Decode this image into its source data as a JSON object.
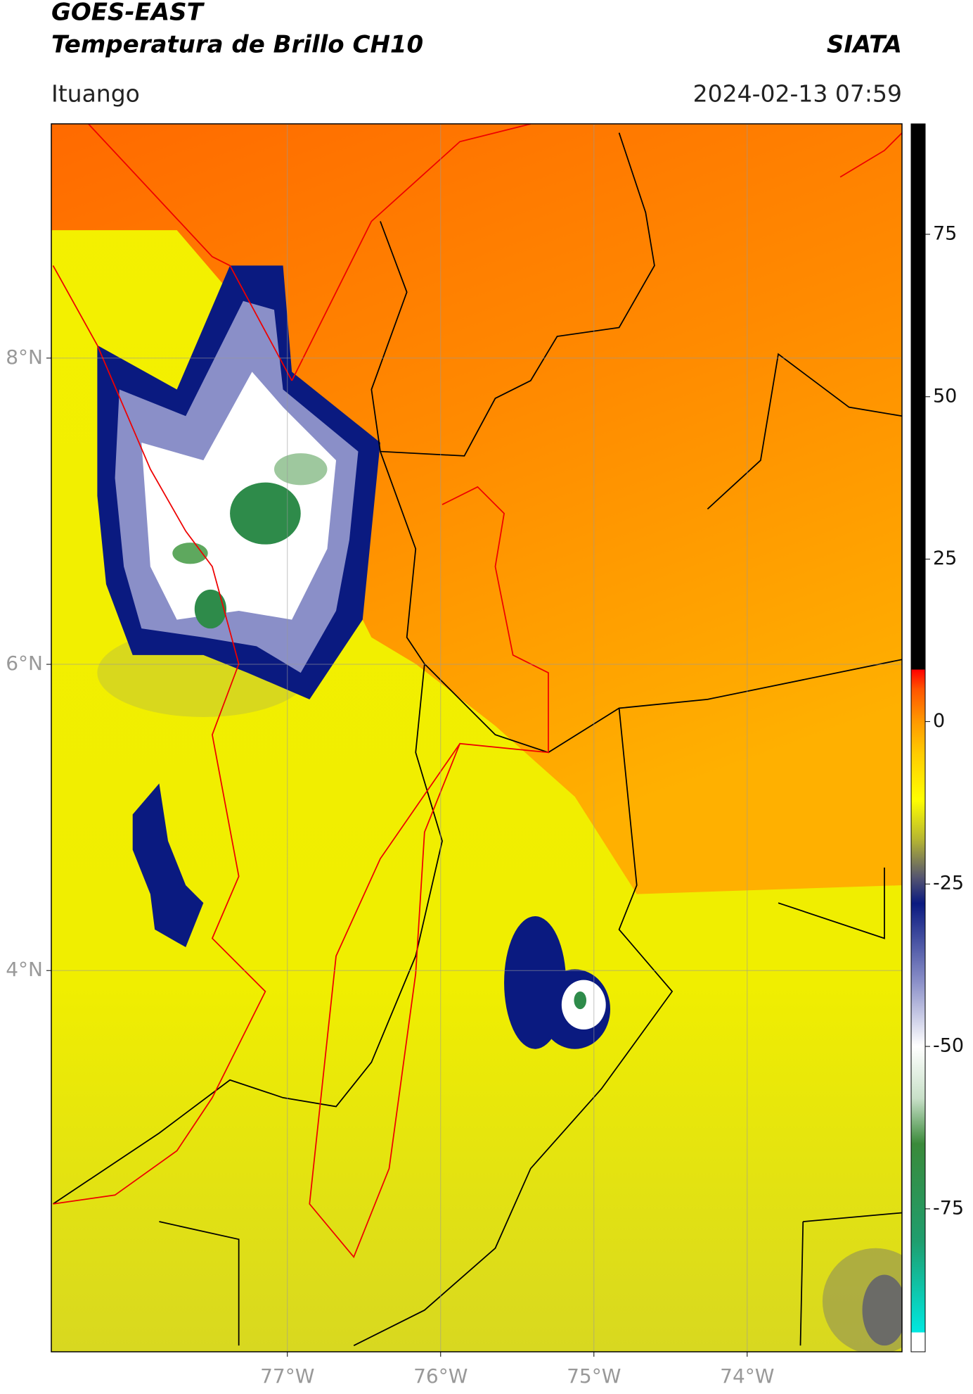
{
  "header": {
    "title": "GOES-EAST",
    "subtitle": "Temperatura de Brillo CH10",
    "org": "SIATA",
    "location": "Ituango",
    "datetime": "2024-02-13 07:59"
  },
  "map": {
    "xlim": [
      -78.54,
      -72.99
    ],
    "ylim": [
      1.51,
      9.53
    ],
    "xticks": [
      {
        "value": -77,
        "label": "77°W"
      },
      {
        "value": -76,
        "label": "76°W"
      },
      {
        "value": -75,
        "label": "75°W"
      },
      {
        "value": -74,
        "label": "74°W"
      }
    ],
    "yticks": [
      {
        "value": 8,
        "label": "8°N"
      },
      {
        "value": 6,
        "label": "6°N"
      },
      {
        "value": 4,
        "label": "4°N"
      }
    ],
    "grid": true
  },
  "colorbar": {
    "clim": [
      -97,
      92
    ],
    "ticks": [
      75,
      50,
      25,
      0,
      -25,
      -50,
      -75
    ],
    "colormap": [
      [
        -97,
        "#ffffff"
      ],
      [
        -94,
        "#ffffff"
      ],
      [
        -94,
        "#00e8e0"
      ],
      [
        -80,
        "#1f9e6e"
      ],
      [
        -65,
        "#3a8a3a"
      ],
      [
        -58,
        "#c8e0c8"
      ],
      [
        -50,
        "#ffffff"
      ],
      [
        -40,
        "#8a8fc8"
      ],
      [
        -28,
        "#0a1a80"
      ],
      [
        -24,
        "#555570"
      ],
      [
        -18,
        "#b8b830"
      ],
      [
        -12,
        "#ffff00"
      ],
      [
        -5,
        "#ffcc00"
      ],
      [
        0,
        "#ff9900"
      ],
      [
        5,
        "#ff5500"
      ],
      [
        8,
        "#ff0000"
      ],
      [
        8,
        "#000000"
      ],
      [
        92,
        "#000000"
      ]
    ]
  }
}
